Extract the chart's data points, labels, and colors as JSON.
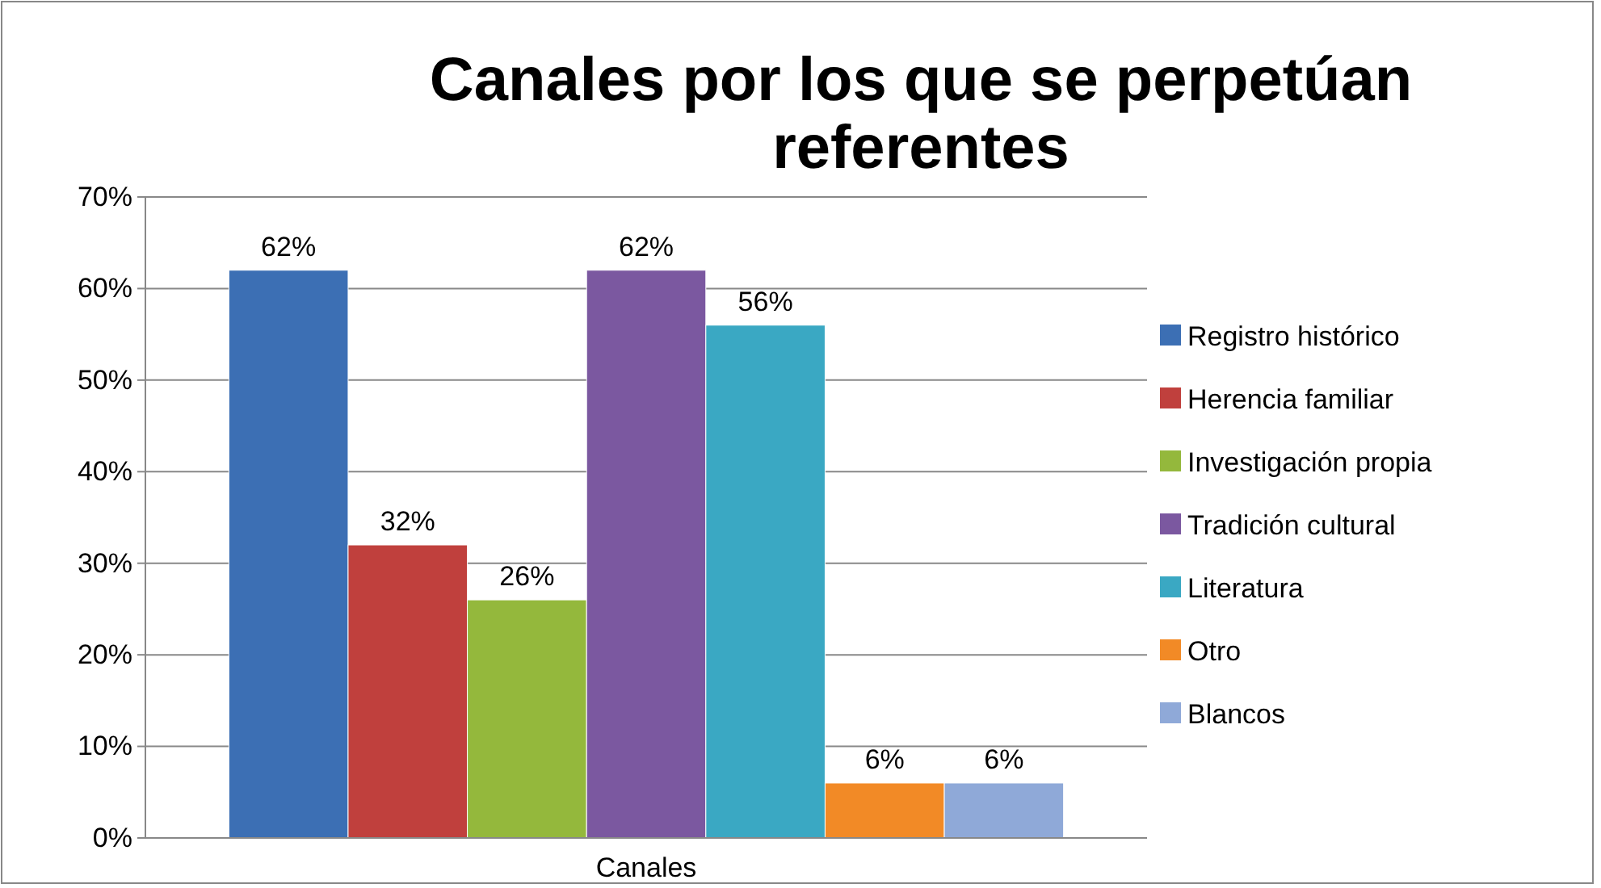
{
  "chart_data": {
    "type": "bar",
    "title": "Canales por los que se perpetúan referentes",
    "categories": [
      "Canales"
    ],
    "series": [
      {
        "name": "Registro histórico",
        "color": "#3c6fb4",
        "values": [
          62
        ],
        "value_labels": [
          "62%"
        ]
      },
      {
        "name": "Herencia familiar",
        "color": "#c0403d",
        "values": [
          32
        ],
        "value_labels": [
          "32%"
        ]
      },
      {
        "name": "Investigación propia",
        "color": "#94b83c",
        "values": [
          26
        ],
        "value_labels": [
          "26%"
        ]
      },
      {
        "name": "Tradición cultural",
        "color": "#7b58a0",
        "values": [
          62
        ],
        "value_labels": [
          "62%"
        ]
      },
      {
        "name": "Literatura",
        "color": "#3aa8c3",
        "values": [
          56
        ],
        "value_labels": [
          "56%"
        ]
      },
      {
        "name": "Otro",
        "color": "#f28a26",
        "values": [
          6
        ],
        "value_labels": [
          "6%"
        ]
      },
      {
        "name": "Blancos",
        "color": "#8fa9d8",
        "values": [
          6
        ],
        "value_labels": [
          "6%"
        ]
      }
    ],
    "ylim": [
      0,
      70
    ],
    "yticks": [
      {
        "value": 0,
        "label": "0%"
      },
      {
        "value": 10,
        "label": "10%"
      },
      {
        "value": 20,
        "label": "20%"
      },
      {
        "value": 30,
        "label": "30%"
      },
      {
        "value": 40,
        "label": "40%"
      },
      {
        "value": 50,
        "label": "50%"
      },
      {
        "value": 60,
        "label": "60%"
      },
      {
        "value": 70,
        "label": "70%"
      }
    ],
    "grid": "y",
    "legend": "right"
  }
}
